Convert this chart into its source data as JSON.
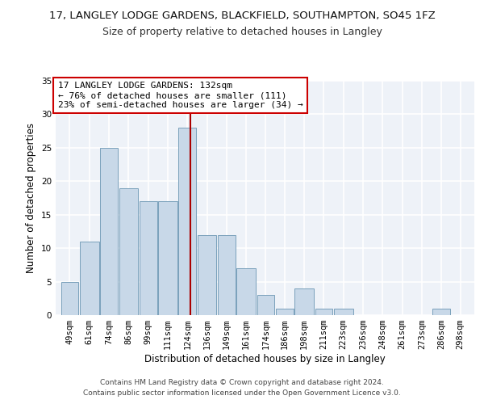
{
  "title1": "17, LANGLEY LODGE GARDENS, BLACKFIELD, SOUTHAMPTON, SO45 1FZ",
  "title2": "Size of property relative to detached houses in Langley",
  "xlabel": "Distribution of detached houses by size in Langley",
  "ylabel": "Number of detached properties",
  "footnote1": "Contains HM Land Registry data © Crown copyright and database right 2024.",
  "footnote2": "Contains public sector information licensed under the Open Government Licence v3.0.",
  "annotation_line1": "17 LANGLEY LODGE GARDENS: 132sqm",
  "annotation_line2": "← 76% of detached houses are smaller (111)",
  "annotation_line3": "23% of semi-detached houses are larger (34) →",
  "bar_color": "#c8d8e8",
  "bar_edge_color": "#7aa0bb",
  "ref_line_color": "#aa0000",
  "ref_line_x": 132,
  "categories": [
    "49sqm",
    "61sqm",
    "74sqm",
    "86sqm",
    "99sqm",
    "111sqm",
    "124sqm",
    "136sqm",
    "149sqm",
    "161sqm",
    "174sqm",
    "186sqm",
    "198sqm",
    "211sqm",
    "223sqm",
    "236sqm",
    "248sqm",
    "261sqm",
    "273sqm",
    "286sqm",
    "298sqm"
  ],
  "bin_edges": [
    49,
    61,
    74,
    86,
    99,
    111,
    124,
    136,
    149,
    161,
    174,
    186,
    198,
    211,
    223,
    236,
    248,
    261,
    273,
    286,
    298,
    310
  ],
  "values": [
    5,
    11,
    25,
    19,
    17,
    17,
    28,
    12,
    12,
    7,
    3,
    1,
    4,
    1,
    1,
    0,
    0,
    0,
    0,
    1,
    0
  ],
  "ylim": [
    0,
    35
  ],
  "yticks": [
    0,
    5,
    10,
    15,
    20,
    25,
    30,
    35
  ],
  "background_color": "#eef2f8",
  "grid_color": "#ffffff",
  "title1_fontsize": 9.5,
  "title2_fontsize": 9,
  "axis_label_fontsize": 8.5,
  "tick_fontsize": 7.5,
  "footnote_fontsize": 6.5,
  "annotation_fontsize": 8
}
